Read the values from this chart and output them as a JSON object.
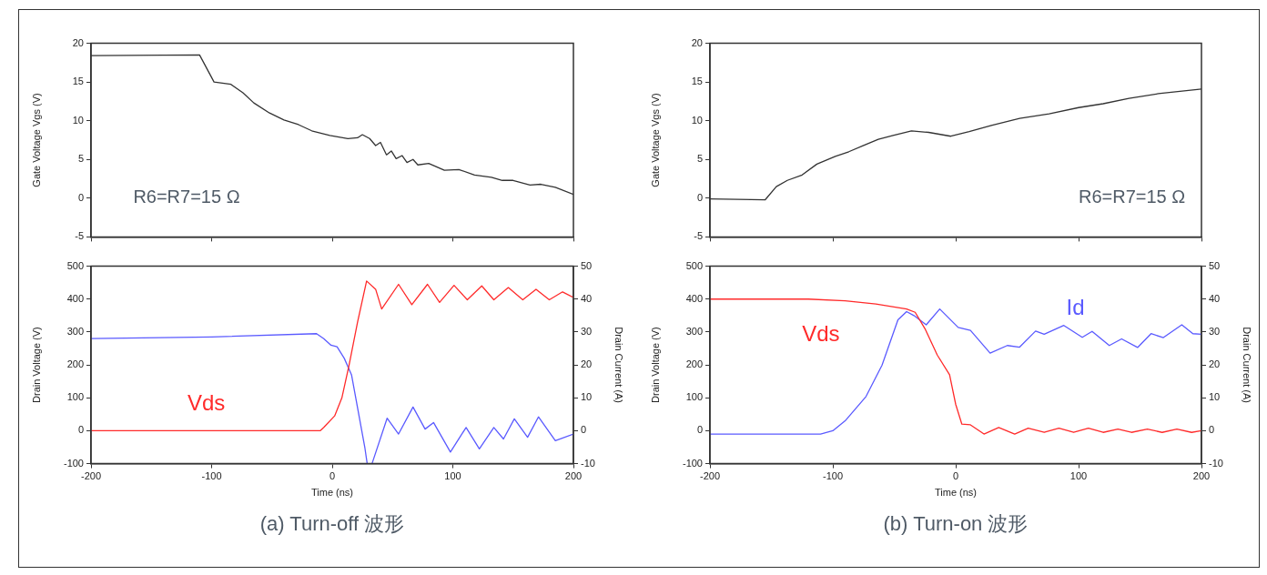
{
  "chart_data": [
    {
      "type": "line",
      "ylabel": "Gate Voltage Vgs (V)",
      "xlim": [
        -200,
        200
      ],
      "xticks": [
        -200,
        -100,
        0,
        100,
        200
      ],
      "ylim": [
        -5,
        20
      ],
      "yticks": [
        -5,
        0,
        5,
        10,
        15,
        20
      ],
      "tick_labels": "y",
      "grid": false,
      "legend": false,
      "marker": "none",
      "annotations": [
        "R6=R7=15 Ω"
      ],
      "series": [
        {
          "color": "#333333",
          "x": [
            -200,
            -110,
            -98,
            -84,
            -74,
            -65,
            -52,
            -40,
            -28,
            -17,
            -2,
            13,
            21,
            25,
            31,
            36,
            40,
            45,
            49,
            53,
            58,
            62,
            67,
            71,
            80,
            93,
            105,
            118,
            132,
            141,
            150,
            164,
            173,
            185,
            200
          ],
          "values": [
            18.4,
            18.5,
            15,
            14.7,
            13.6,
            12.3,
            11,
            10.1,
            9.5,
            8.7,
            8.1,
            7.7,
            7.8,
            8.2,
            7.7,
            6.8,
            7.2,
            5.6,
            6.1,
            5.1,
            5.5,
            4.6,
            5,
            4.3,
            4.5,
            3.6,
            3.7,
            3,
            2.7,
            2.3,
            2.3,
            1.7,
            1.8,
            1.4,
            0.5
          ]
        }
      ]
    },
    {
      "type": "line",
      "xlabel": "Time (ns)",
      "ylabel": "Drain Voltage (V)",
      "y2label": "Drain Current (A)",
      "xlim": [
        -200,
        200
      ],
      "xticks": [
        -200,
        -100,
        0,
        100,
        200
      ],
      "ylim": [
        -100,
        500
      ],
      "yticks": [
        -100,
        0,
        100,
        200,
        300,
        400,
        500
      ],
      "y2lim": [
        -10,
        50
      ],
      "y2ticks": [
        -10,
        0,
        10,
        20,
        30,
        40,
        50
      ],
      "grid": false,
      "legend": false,
      "marker": "none",
      "annotations": [
        "(a) Turn-off 波形"
      ],
      "series": [
        {
          "name": "Vds",
          "color": "#ff2a2a",
          "x": [
            -200,
            -10,
            -7,
            2,
            8,
            14,
            21,
            28.5,
            36,
            41,
            55,
            66,
            79,
            89,
            101,
            112,
            124,
            134,
            146,
            158,
            169,
            180,
            191,
            200
          ],
          "values": [
            0,
            0,
            10,
            45,
            100,
            200,
            330,
            455,
            430,
            370,
            445,
            383,
            445,
            390,
            442,
            398,
            440,
            398,
            435,
            398,
            430,
            398,
            422,
            405
          ]
        },
        {
          "color": "#5a5aff",
          "axis": "y2",
          "x": [
            -200,
            -100,
            -13,
            -7,
            -1,
            4,
            10,
            16,
            22,
            27,
            29,
            33,
            45.5,
            55,
            67,
            77,
            84,
            98,
            111,
            122,
            134,
            142,
            151,
            162,
            171,
            185,
            200
          ],
          "values": [
            28,
            28.5,
            29.5,
            28,
            26,
            25.5,
            22,
            17,
            5,
            -5,
            -10,
            -10,
            3.8,
            -1,
            7.2,
            0.5,
            2.5,
            -6.5,
            1,
            -5.5,
            1,
            -2.5,
            3.6,
            -2,
            4.2,
            -3,
            -1
          ]
        }
      ]
    },
    {
      "type": "line",
      "ylabel": "Gate Voltage Vgs (V)",
      "xlim": [
        -200,
        200
      ],
      "xticks": [
        -200,
        -100,
        0,
        100,
        200
      ],
      "ylim": [
        -5,
        20
      ],
      "yticks": [
        -5,
        0,
        5,
        10,
        15,
        20
      ],
      "tick_labels": "y",
      "grid": false,
      "legend": false,
      "marker": "none",
      "annotations": [
        "R6=R7=15 Ω"
      ],
      "series": [
        {
          "color": "#333333",
          "x": [
            -200,
            -155,
            -146,
            -137,
            -125,
            -113,
            -98,
            -87,
            -75,
            -63,
            -51,
            -36,
            -22,
            -4,
            11,
            29,
            52,
            76,
            100,
            120,
            141,
            165,
            200
          ],
          "values": [
            -0.1,
            -0.2,
            1.5,
            2.3,
            3,
            4.4,
            5.4,
            6,
            6.8,
            7.6,
            8.1,
            8.7,
            8.5,
            8,
            8.6,
            9.4,
            10.3,
            10.9,
            11.7,
            12.2,
            12.9,
            13.5,
            14.1
          ]
        }
      ]
    },
    {
      "type": "line",
      "xlabel": "Time (ns)",
      "ylabel": "Drain Voltage (V)",
      "y2label": "Drain Current (A)",
      "xlim": [
        -200,
        200
      ],
      "xticks": [
        -200,
        -100,
        0,
        100,
        200
      ],
      "ylim": [
        -100,
        500
      ],
      "yticks": [
        -100,
        0,
        100,
        200,
        300,
        400,
        500
      ],
      "y2lim": [
        -10,
        50
      ],
      "y2ticks": [
        -10,
        0,
        10,
        20,
        30,
        40,
        50
      ],
      "grid": false,
      "legend": false,
      "marker": "none",
      "annotations": [
        "(b) Turn-on 波形"
      ],
      "series": [
        {
          "name": "Vds",
          "color": "#ff2a2a",
          "x": [
            -200,
            -120,
            -90,
            -65,
            -40,
            -33,
            -25,
            -15,
            -5,
            0,
            5,
            12,
            23,
            35,
            48,
            59,
            72,
            84,
            96,
            108,
            120,
            132,
            143,
            156,
            168,
            180,
            192,
            200
          ],
          "values": [
            400,
            400,
            395,
            385,
            370,
            360,
            310,
            230,
            170,
            80,
            20,
            18,
            -10,
            10,
            -10,
            8,
            -5,
            8,
            -5,
            8,
            -5,
            5,
            -5,
            5,
            -5,
            5,
            -5,
            0
          ]
        },
        {
          "name": "Id",
          "color": "#5a5aff",
          "axis": "y2",
          "x": [
            -200,
            -110,
            -100,
            -90,
            -73,
            -60,
            -47,
            -40,
            -34,
            -24,
            -13,
            2,
            12,
            28,
            42,
            52,
            65,
            72,
            88,
            103,
            111,
            125,
            135,
            148,
            159,
            169,
            184,
            193,
            200
          ],
          "values": [
            -1,
            -1,
            0,
            3,
            10.4,
            19.9,
            33.7,
            36.2,
            35,
            32.2,
            37,
            31.4,
            30.5,
            23.6,
            25.9,
            25.4,
            30.3,
            29.3,
            32,
            28.4,
            30.2,
            25.9,
            27.9,
            25.3,
            29.5,
            28.3,
            32.2,
            29.5,
            29.3
          ]
        }
      ]
    }
  ]
}
